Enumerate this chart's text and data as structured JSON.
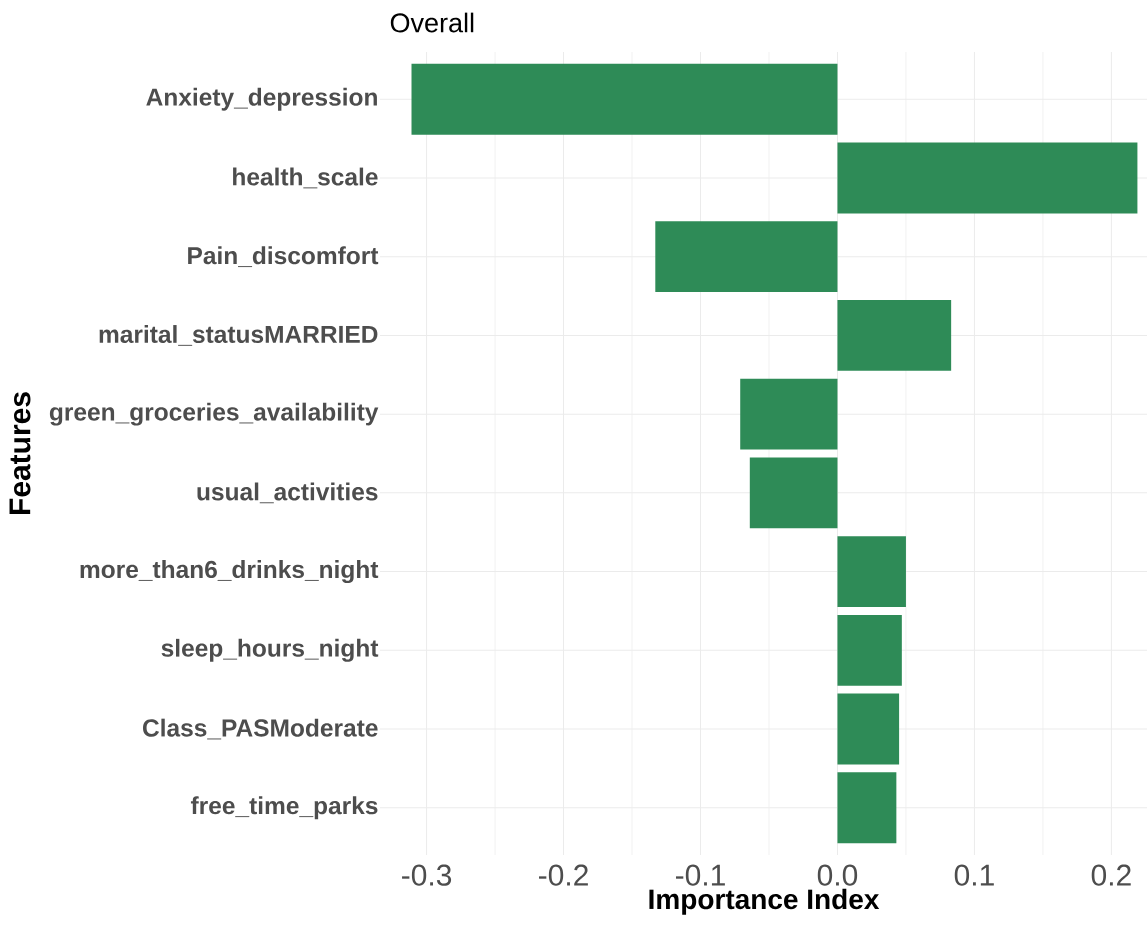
{
  "chart_data": {
    "type": "bar",
    "orientation": "horizontal",
    "title": "Overall",
    "xlabel": "Importance Index",
    "ylabel": "Features",
    "categories": [
      "Anxiety_depression",
      "health_scale",
      "Pain_discomfort",
      "marital_statusMARRIED",
      "green_groceries_availability",
      "usual_activities",
      "more_than6_drinks_night",
      "sleep_hours_night",
      "Class_PASModerate",
      "free_time_parks"
    ],
    "values": [
      -0.311,
      0.219,
      -0.133,
      0.083,
      -0.071,
      -0.064,
      0.05,
      0.047,
      0.045,
      0.043
    ],
    "color": "#2e8b57",
    "xlim": [
      -0.334,
      0.226
    ],
    "xticks": [
      {
        "value": -0.3,
        "label": "-0.3"
      },
      {
        "value": -0.2,
        "label": "-0.2"
      },
      {
        "value": -0.1,
        "label": "-0.1"
      },
      {
        "value": 0,
        "label": "0.0"
      },
      {
        "value": 0.1,
        "label": "0.1"
      },
      {
        "value": 0.2,
        "label": "0.2"
      }
    ],
    "grid": true
  }
}
